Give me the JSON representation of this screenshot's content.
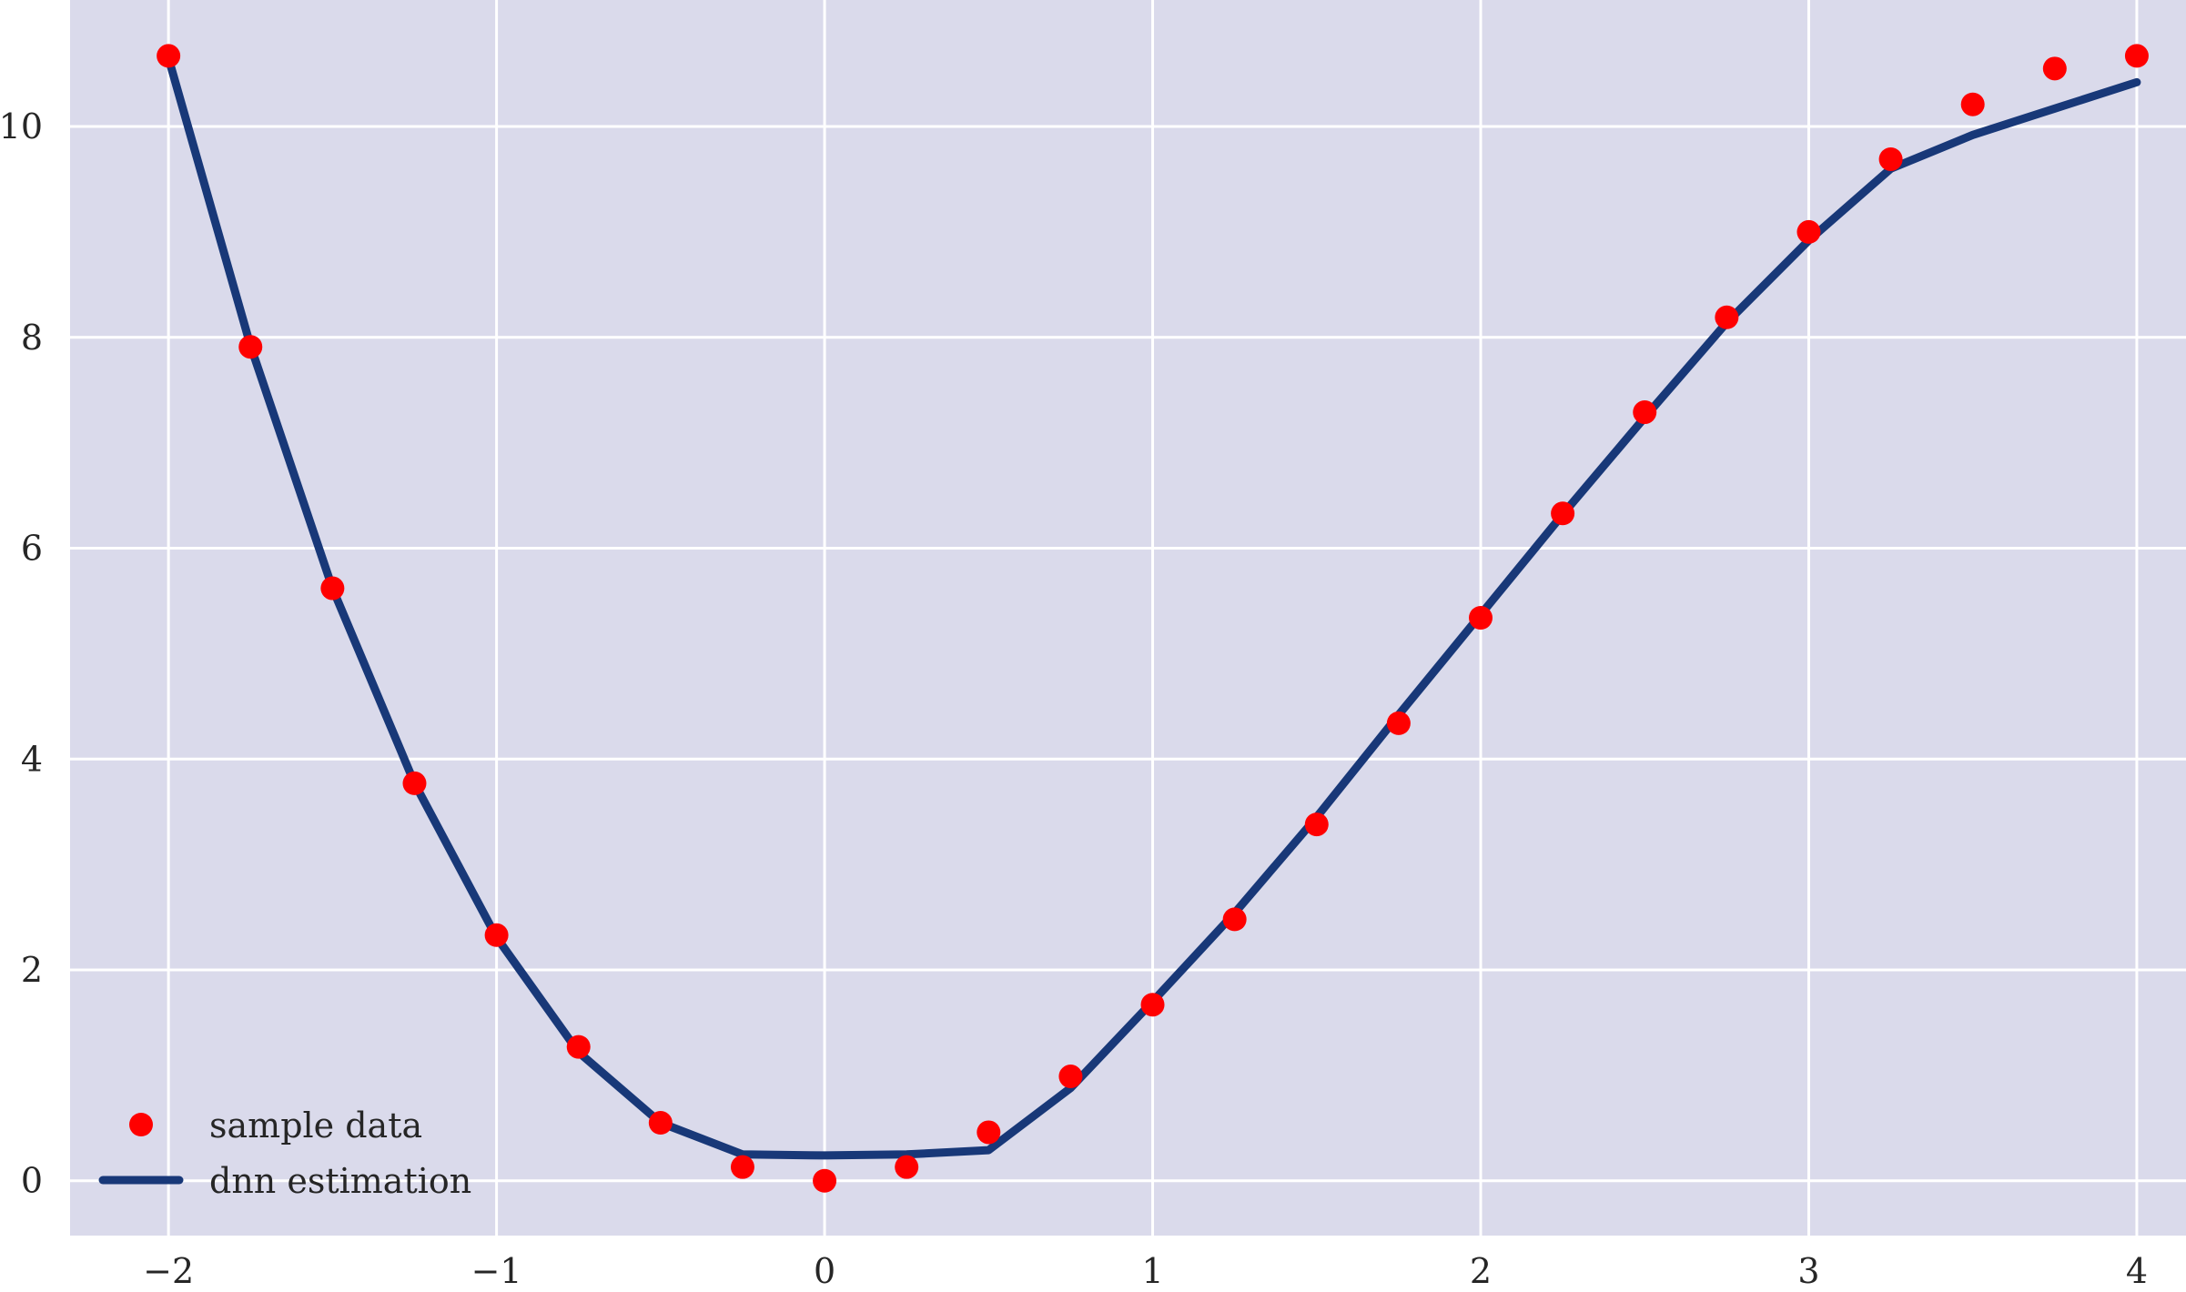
{
  "chart_data": {
    "type": "line",
    "title": "",
    "xlabel": "",
    "ylabel": "",
    "xlim": [
      -2.3,
      4.15
    ],
    "ylim": [
      -0.52,
      11.2
    ],
    "xticks": [
      -2,
      -1,
      0,
      1,
      2,
      3,
      4
    ],
    "xtick_labels": [
      "−2",
      "−1",
      "0",
      "1",
      "2",
      "3",
      "4"
    ],
    "yticks": [
      0,
      2,
      4,
      6,
      8,
      10
    ],
    "ytick_labels": [
      "0",
      "2",
      "4",
      "6",
      "8",
      "10"
    ],
    "grid": true,
    "legend_position": "lower-left",
    "series": [
      {
        "name": "sample data",
        "kind": "scatter",
        "color": "#ff0000",
        "x": [
          -2,
          -1.75,
          -1.5,
          -1.25,
          -1,
          -0.75,
          -0.5,
          -0.25,
          0,
          0.25,
          0.5,
          0.75,
          1,
          1.25,
          1.5,
          1.75,
          2,
          2.25,
          2.5,
          2.75,
          3,
          3.25,
          3.5,
          3.75,
          4
        ],
        "y": [
          10.67,
          7.91,
          5.62,
          3.77,
          2.33,
          1.27,
          0.55,
          0.13,
          0.0,
          0.13,
          0.46,
          0.99,
          1.67,
          2.48,
          3.38,
          4.34,
          5.34,
          6.33,
          7.29,
          8.19,
          9.0,
          9.69,
          10.21,
          10.55,
          10.67
        ]
      },
      {
        "name": "dnn estimation",
        "kind": "line",
        "color": "#183878",
        "x": [
          -2,
          -1.75,
          -1.5,
          -1.25,
          -1,
          -0.75,
          -0.5,
          -0.25,
          0,
          0.25,
          0.5,
          0.75,
          1,
          1.25,
          1.5,
          1.75,
          2,
          2.25,
          2.5,
          2.75,
          3,
          3.25,
          3.5,
          3.75,
          4
        ],
        "y": [
          10.65,
          7.92,
          5.62,
          3.77,
          2.31,
          1.22,
          0.55,
          0.25,
          0.24,
          0.25,
          0.29,
          0.88,
          1.7,
          2.54,
          3.45,
          4.42,
          5.37,
          6.32,
          7.24,
          8.14,
          8.92,
          9.6,
          9.92,
          10.17,
          10.42
        ]
      }
    ],
    "colors": {
      "plot_background": "#dadaeb",
      "grid": "#ffffff",
      "text": "#262626"
    }
  }
}
